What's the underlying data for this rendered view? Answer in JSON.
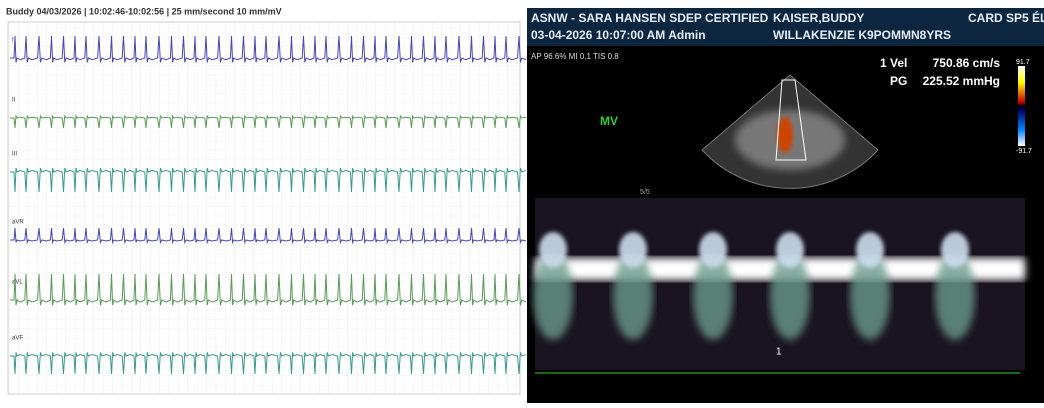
{
  "ecg": {
    "title": "Buddy  04/03/2026 | 10:02:46-10:02:56 | 25 mm/second 10 mm/mV",
    "leads": [
      "I",
      "II",
      "III",
      "aVR",
      "aVL",
      "aVF"
    ]
  },
  "echo": {
    "header": {
      "left1": "ASNW - SARA HANSEN SDEP CERTIFIED",
      "mid1": "KAISER,BUDDY",
      "right1": "CARD SP5 ÉL",
      "left2": "03-04-2026  10:07:00 AM   Admin",
      "mid2": "WILLAKENZIE K9POMMN8YRS"
    },
    "params": "AP 96.6%  MI 0.1  TIS 0.8",
    "mode": "MV",
    "depth": "5/5",
    "marker": "1",
    "measure": {
      "vel_label": "1 Vel",
      "vel": "750.86 cm/s",
      "pg_label": "PG",
      "pg": "225.52 mmHg"
    },
    "scale": {
      "top": "91.7",
      "bottom": "-91.7"
    }
  }
}
